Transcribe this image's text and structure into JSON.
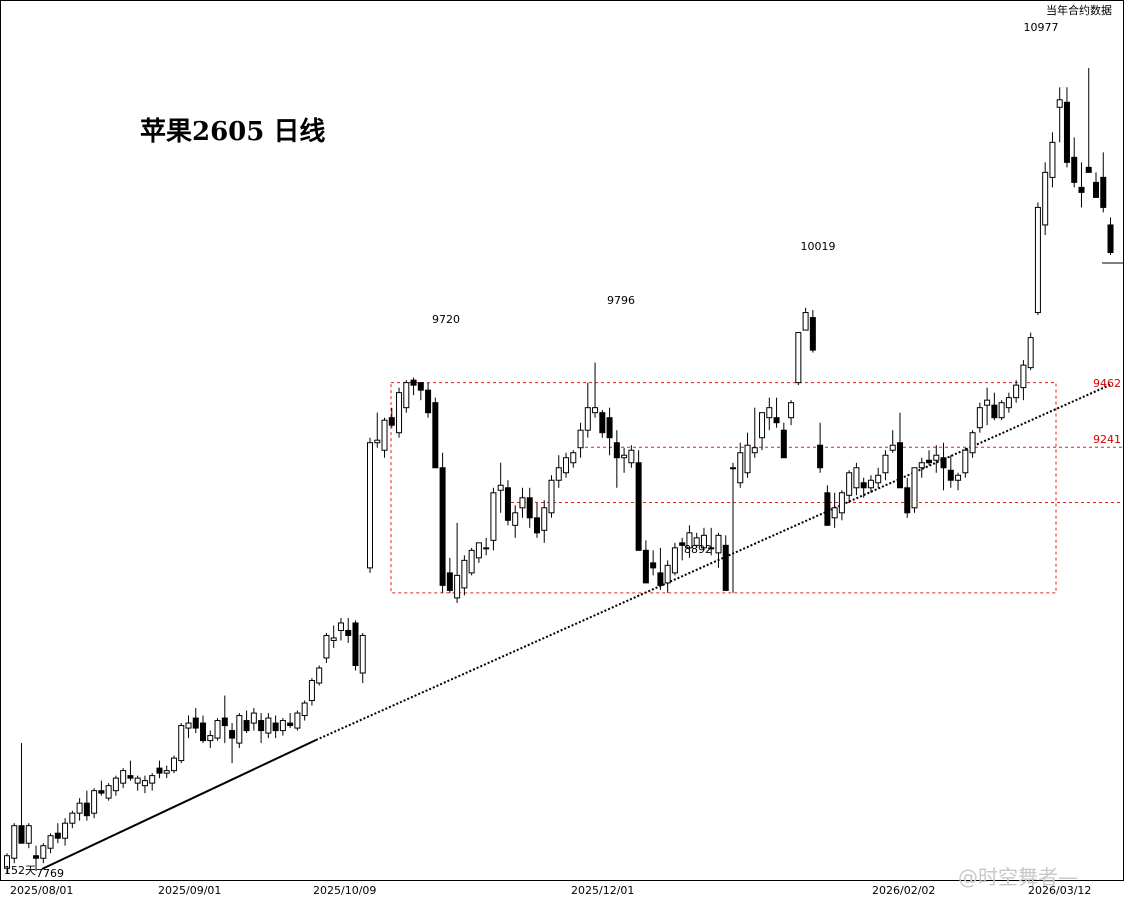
{
  "chart_data": {
    "type": "candlestick",
    "title": "苹果2605  日线",
    "corner_note": "当年合约数据",
    "x_ticks": [
      "2025/08/01",
      "2025/09/01",
      "2025/10/09",
      "2025/12/01",
      "2026/02/02",
      "2026/03/12"
    ],
    "annotations": {
      "peak_1": "9720",
      "peak_2": "9796",
      "peak_3": "10019",
      "peak_4": "10977",
      "low_1": "8892",
      "start_low": "7769",
      "days": "152天"
    },
    "levels": {
      "box_top": 9720,
      "box_bottom": 8880,
      "upper_band": 9462,
      "lower_band": 9241,
      "upper_band_label": "9462",
      "lower_band_label": "9241",
      "y_range": [
        7680,
        11280
      ]
    },
    "candles_ohlc": [
      [
        7780,
        7840,
        7760,
        7830
      ],
      [
        7820,
        7960,
        7800,
        7950
      ],
      [
        7950,
        8280,
        7900,
        7880
      ],
      [
        7880,
        7960,
        7860,
        7950
      ],
      [
        7830,
        7870,
        7769,
        7820
      ],
      [
        7820,
        7880,
        7800,
        7870
      ],
      [
        7860,
        7920,
        7840,
        7910
      ],
      [
        7920,
        7960,
        7880,
        7900
      ],
      [
        7900,
        7980,
        7870,
        7960
      ],
      [
        7960,
        8010,
        7940,
        8000
      ],
      [
        8000,
        8060,
        7970,
        8040
      ],
      [
        8040,
        8090,
        7970,
        7990
      ],
      [
        8000,
        8100,
        7980,
        8090
      ],
      [
        8090,
        8130,
        8070,
        8080
      ],
      [
        8060,
        8120,
        8050,
        8110
      ],
      [
        8090,
        8150,
        8070,
        8140
      ],
      [
        8120,
        8180,
        8100,
        8170
      ],
      [
        8150,
        8210,
        8130,
        8140
      ],
      [
        8120,
        8150,
        8090,
        8140
      ],
      [
        8110,
        8150,
        8080,
        8130
      ],
      [
        8120,
        8160,
        8090,
        8150
      ],
      [
        8180,
        8210,
        8140,
        8160
      ],
      [
        8160,
        8190,
        8140,
        8170
      ],
      [
        8170,
        8230,
        8160,
        8220
      ],
      [
        8210,
        8360,
        8200,
        8350
      ],
      [
        8340,
        8390,
        8300,
        8360
      ],
      [
        8380,
        8420,
        8320,
        8340
      ],
      [
        8360,
        8390,
        8280,
        8290
      ],
      [
        8290,
        8330,
        8260,
        8310
      ],
      [
        8300,
        8380,
        8290,
        8370
      ],
      [
        8380,
        8470,
        8280,
        8350
      ],
      [
        8330,
        8360,
        8200,
        8300
      ],
      [
        8280,
        8400,
        8260,
        8390
      ],
      [
        8370,
        8410,
        8320,
        8330
      ],
      [
        8360,
        8420,
        8330,
        8400
      ],
      [
        8370,
        8400,
        8280,
        8330
      ],
      [
        8320,
        8400,
        8300,
        8380
      ],
      [
        8360,
        8390,
        8300,
        8330
      ],
      [
        8330,
        8380,
        8310,
        8370
      ],
      [
        8360,
        8400,
        8340,
        8350
      ],
      [
        8340,
        8410,
        8330,
        8400
      ],
      [
        8390,
        8450,
        8370,
        8440
      ],
      [
        8450,
        8540,
        8430,
        8530
      ],
      [
        8520,
        8590,
        8510,
        8580
      ],
      [
        8620,
        8720,
        8600,
        8710
      ],
      [
        8690,
        8750,
        8660,
        8700
      ],
      [
        8730,
        8780,
        8690,
        8760
      ],
      [
        8730,
        8780,
        8680,
        8710
      ],
      [
        8760,
        8770,
        8570,
        8590
      ],
      [
        8560,
        8720,
        8520,
        8710
      ],
      [
        8980,
        9500,
        8960,
        9480
      ],
      [
        9480,
        9600,
        9460,
        9490
      ],
      [
        9450,
        9580,
        9420,
        9570
      ],
      [
        9580,
        9620,
        9540,
        9550
      ],
      [
        9520,
        9700,
        9500,
        9680
      ],
      [
        9620,
        9730,
        9600,
        9720
      ],
      [
        9730,
        9740,
        9670,
        9710
      ],
      [
        9720,
        9720,
        9650,
        9690
      ],
      [
        9690,
        9720,
        9580,
        9600
      ],
      [
        9640,
        9660,
        9380,
        9380
      ],
      [
        9380,
        9440,
        8880,
        8910
      ],
      [
        8960,
        9020,
        8880,
        8890
      ],
      [
        8860,
        9160,
        8840,
        8950
      ],
      [
        8900,
        9030,
        8870,
        9010
      ],
      [
        8960,
        9060,
        8950,
        9050
      ],
      [
        9020,
        9080,
        9000,
        9080
      ],
      [
        9060,
        9100,
        9030,
        9060
      ],
      [
        9090,
        9300,
        9050,
        9280
      ],
      [
        9290,
        9400,
        9200,
        9310
      ],
      [
        9300,
        9330,
        9150,
        9170
      ],
      [
        9150,
        9230,
        9100,
        9200
      ],
      [
        9220,
        9300,
        9180,
        9260
      ],
      [
        9260,
        9300,
        9140,
        9180
      ],
      [
        9180,
        9240,
        9100,
        9120
      ],
      [
        9130,
        9250,
        9080,
        9220
      ],
      [
        9200,
        9350,
        9180,
        9330
      ],
      [
        9330,
        9430,
        9300,
        9380
      ],
      [
        9360,
        9440,
        9340,
        9420
      ],
      [
        9400,
        9450,
        9380,
        9440
      ],
      [
        9460,
        9560,
        9420,
        9530
      ],
      [
        9530,
        9720,
        9500,
        9620
      ],
      [
        9600,
        9800,
        9580,
        9620
      ],
      [
        9600,
        9610,
        9500,
        9520
      ],
      [
        9580,
        9620,
        9430,
        9500
      ],
      [
        9480,
        9530,
        9300,
        9420
      ],
      [
        9420,
        9460,
        9360,
        9430
      ],
      [
        9400,
        9470,
        9380,
        9450
      ],
      [
        9400,
        9450,
        9200,
        9050
      ],
      [
        9050,
        9090,
        8920,
        8920
      ],
      [
        9000,
        9050,
        8950,
        8980
      ],
      [
        8960,
        9060,
        8892,
        8910
      ],
      [
        8920,
        9010,
        8880,
        8990
      ],
      [
        8960,
        9080,
        8950,
        9060
      ],
      [
        9080,
        9100,
        9010,
        9070
      ],
      [
        9060,
        9150,
        9020,
        9120
      ],
      [
        9070,
        9120,
        9060,
        9100
      ],
      [
        9060,
        9140,
        9050,
        9110
      ],
      [
        9060,
        9140,
        9030,
        9060
      ],
      [
        9040,
        9120,
        8980,
        9110
      ],
      [
        9070,
        9110,
        8890,
        8890
      ],
      [
        9380,
        9400,
        8880,
        9380
      ],
      [
        9320,
        9480,
        9300,
        9440
      ],
      [
        9360,
        9520,
        9340,
        9470
      ],
      [
        9440,
        9620,
        9420,
        9460
      ],
      [
        9500,
        9600,
        9450,
        9600
      ],
      [
        9580,
        9660,
        9530,
        9620
      ],
      [
        9580,
        9660,
        9540,
        9560
      ],
      [
        9530,
        9560,
        9420,
        9420
      ],
      [
        9580,
        9650,
        9550,
        9640
      ],
      [
        9720,
        9920,
        9710,
        9920
      ],
      [
        9930,
        10019,
        9930,
        10000
      ],
      [
        9980,
        10010,
        9840,
        9850
      ],
      [
        9470,
        9560,
        9360,
        9380
      ],
      [
        9280,
        9310,
        9150,
        9150
      ],
      [
        9180,
        9280,
        9140,
        9220
      ],
      [
        9200,
        9290,
        9170,
        9280
      ],
      [
        9270,
        9370,
        9240,
        9360
      ],
      [
        9300,
        9400,
        9270,
        9380
      ],
      [
        9320,
        9340,
        9260,
        9300
      ],
      [
        9300,
        9350,
        9280,
        9330
      ],
      [
        9320,
        9380,
        9300,
        9350
      ],
      [
        9360,
        9450,
        9330,
        9430
      ],
      [
        9450,
        9530,
        9440,
        9470
      ],
      [
        9480,
        9600,
        9320,
        9300
      ],
      [
        9300,
        9340,
        9180,
        9200
      ],
      [
        9220,
        9380,
        9200,
        9380
      ],
      [
        9380,
        9420,
        9340,
        9400
      ],
      [
        9410,
        9450,
        9390,
        9400
      ],
      [
        9410,
        9470,
        9360,
        9430
      ],
      [
        9420,
        9480,
        9290,
        9380
      ],
      [
        9370,
        9430,
        9300,
        9330
      ],
      [
        9330,
        9360,
        9290,
        9350
      ],
      [
        9360,
        9460,
        9340,
        9450
      ],
      [
        9440,
        9530,
        9420,
        9520
      ],
      [
        9540,
        9640,
        9520,
        9620
      ],
      [
        9630,
        9700,
        9550,
        9650
      ],
      [
        9630,
        9680,
        9570,
        9580
      ],
      [
        9580,
        9650,
        9570,
        9640
      ],
      [
        9620,
        9680,
        9600,
        9660
      ],
      [
        9660,
        9730,
        9640,
        9710
      ],
      [
        9700,
        9810,
        9650,
        9790
      ],
      [
        9780,
        9920,
        9770,
        9900
      ],
      [
        10000,
        10440,
        9990,
        10420
      ],
      [
        10350,
        10600,
        10310,
        10560
      ],
      [
        10540,
        10720,
        10500,
        10680
      ],
      [
        10820,
        10900,
        10680,
        10850
      ],
      [
        10840,
        10900,
        10580,
        10600
      ],
      [
        10620,
        10700,
        10500,
        10520
      ],
      [
        10500,
        10600,
        10420,
        10480
      ],
      [
        10580,
        10977,
        10560,
        10560
      ],
      [
        10520,
        10560,
        10460,
        10460
      ],
      [
        10540,
        10640,
        10400,
        10420
      ],
      [
        10350,
        10380,
        10230,
        10240
      ]
    ]
  }
}
